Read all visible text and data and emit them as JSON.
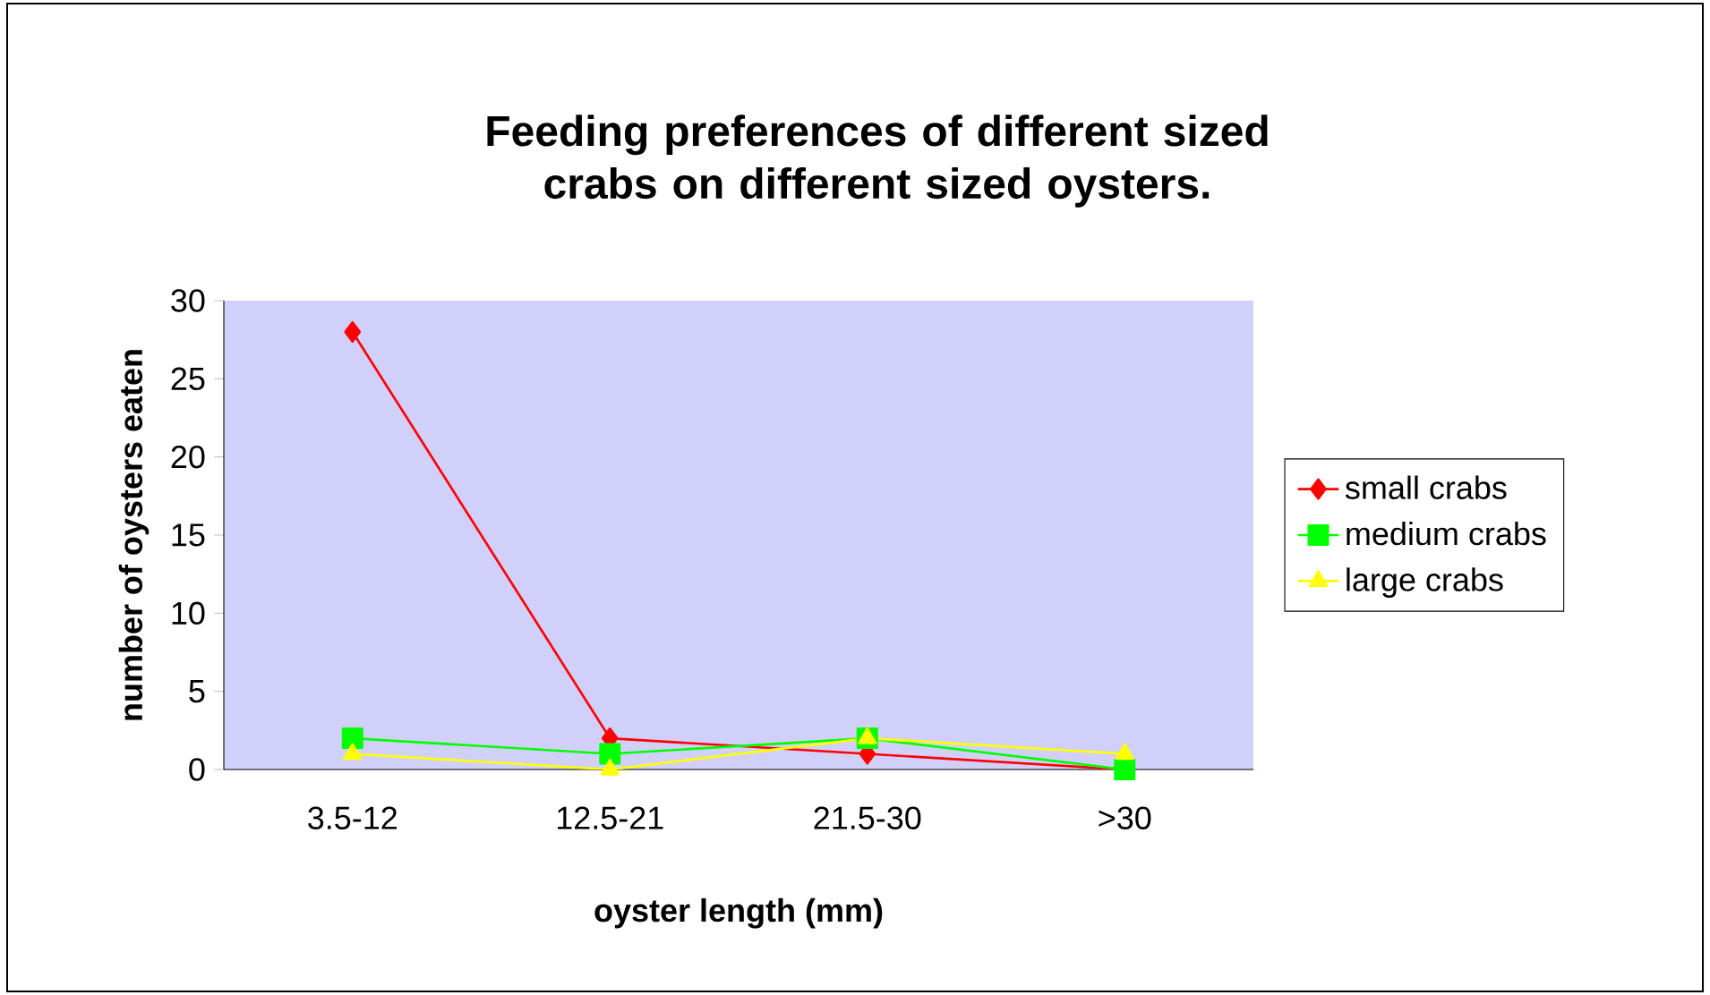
{
  "chart_data": {
    "type": "line",
    "title": "Feeding preferences of different sized crabs on different sized oysters.",
    "xlabel": "oyster length (mm)",
    "ylabel": "number of oysters eaten",
    "categories": [
      "3.5-12",
      "12.5-21",
      "21.5-30",
      ">30"
    ],
    "series": [
      {
        "name": "small crabs",
        "color": "#ff0000",
        "marker": "diamond",
        "values": [
          28,
          2,
          1,
          0
        ]
      },
      {
        "name": "medium crabs",
        "color": "#00ff00",
        "marker": "square",
        "values": [
          2,
          1,
          2,
          0
        ]
      },
      {
        "name": "large crabs",
        "color": "#ffff00",
        "marker": "triangle",
        "values": [
          1,
          0,
          2,
          1
        ]
      }
    ],
    "ylim": [
      0,
      30
    ],
    "yticks": [
      0,
      5,
      10,
      15,
      20,
      25,
      30
    ],
    "grid": false,
    "legend": "right",
    "line_style": "solid"
  }
}
